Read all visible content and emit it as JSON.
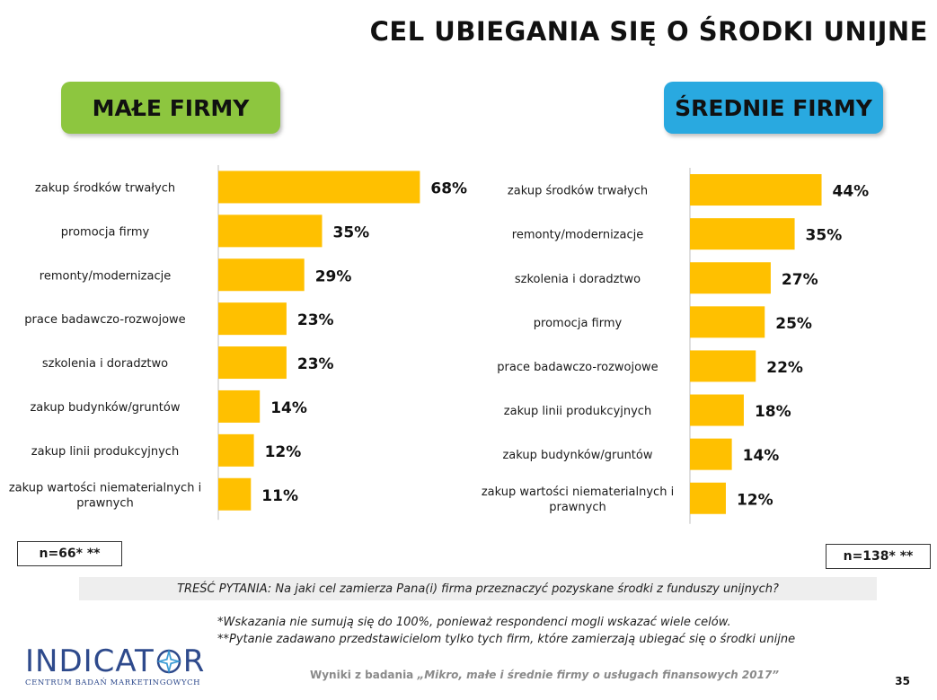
{
  "title": "CEL UBIEGANIA SIĘ O ŚRODKI UNIJNE",
  "colors": {
    "bar": "#FFC000",
    "small_label_bg": "#8DC63F",
    "medium_label_bg": "#29A9E0",
    "axis": "#bfbfbf"
  },
  "chart_data": [
    {
      "type": "bar",
      "orientation": "horizontal",
      "title": "MAŁE FIRMY",
      "categories": [
        "zakup środków trwałych",
        "promocja firmy",
        "remonty/modernizacje",
        "prace badawczo-rozwojowe",
        "szkolenia i doradztwo",
        "zakup budynków/gruntów",
        "zakup linii produkcyjnych",
        "zakup wartości niematerialnych i prawnych"
      ],
      "values": [
        68,
        35,
        29,
        23,
        23,
        14,
        12,
        11
      ],
      "value_labels": [
        "68%",
        "35%",
        "29%",
        "23%",
        "23%",
        "14%",
        "12%",
        "11%"
      ],
      "unit": "%",
      "sample": "n=66* **"
    },
    {
      "type": "bar",
      "orientation": "horizontal",
      "title": "ŚREDNIE FIRMY",
      "categories": [
        "zakup środków trwałych",
        "remonty/modernizacje",
        "szkolenia i doradztwo",
        "promocja firmy",
        "prace badawczo-rozwojowe",
        "zakup linii produkcyjnych",
        "zakup budynków/gruntów",
        "zakup wartości niematerialnych i prawnych"
      ],
      "values": [
        44,
        35,
        27,
        25,
        22,
        18,
        14,
        12
      ],
      "value_labels": [
        "44%",
        "35%",
        "27%",
        "25%",
        "22%",
        "18%",
        "14%",
        "12%"
      ],
      "unit": "%",
      "sample": "n=138* **"
    }
  ],
  "question": "TREŚĆ PYTANIA: Na jaki cel zamierza Pana(i) firma przeznaczyć pozyskane środki z funduszy unijnych?",
  "footnotes": [
    "*Wskazania nie sumują się do 100%, ponieważ respondenci mogli wskazać wiele celów.",
    "**Pytanie zadawano przedstawicielom tylko tych firm, które zamierzają ubiegać się o środki unijne"
  ],
  "logo": {
    "name_left": "INDICAT",
    "name_right": "R",
    "subtitle": "CENTRUM BADAŃ MARKETINGOWYCH",
    "icon": "compass-star-icon"
  },
  "source": {
    "prefix": "Wyniki z badania ",
    "title": "„Mikro, małe i średnie firmy o usługach finansowych 2017”"
  },
  "page_number": "35"
}
